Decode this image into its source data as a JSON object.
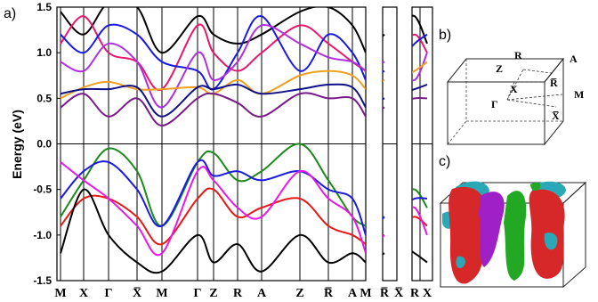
{
  "panels": {
    "a": "a)",
    "b": "b)",
    "c": "c)"
  },
  "chart_data": {
    "type": "line",
    "ylabel": "Energy (eV)",
    "ylim": [
      -1.5,
      1.5
    ],
    "yticks": [
      "1.5",
      "1.0",
      "0.5",
      "0.0",
      "-0.5",
      "-1.0",
      "-1.5"
    ],
    "yticks_values": [
      1.5,
      1.0,
      0.5,
      0.0,
      -0.5,
      -1.0,
      -1.5
    ],
    "fermi_level": 0.0,
    "kpoint_labels": [
      "M",
      "X",
      "Γ",
      "X̅",
      "M",
      "Γ",
      "Z",
      "R",
      "A",
      "Z",
      "R̅",
      "A",
      "M",
      "R̅",
      "X̅",
      "R",
      "X"
    ],
    "series": [
      {
        "color": "#000000",
        "values": [
          1.45,
          1.2,
          1.55,
          1.5,
          1.0,
          1.4,
          1.2,
          1.1,
          1.2,
          1.45,
          1.5,
          1.3,
          1.0,
          1.2,
          1.3,
          1.4,
          1.1
        ]
      },
      {
        "color": "#e8186e",
        "values": [
          1.1,
          1.4,
          1.0,
          0.9,
          0.6,
          1.3,
          1.0,
          0.8,
          1.0,
          1.3,
          1.1,
          0.9,
          0.8,
          0.9,
          1.0,
          1.2,
          1.0
        ]
      },
      {
        "color": "#1a1ae0",
        "values": [
          1.2,
          1.0,
          1.3,
          1.2,
          0.9,
          0.8,
          0.6,
          1.0,
          1.4,
          0.8,
          1.2,
          1.0,
          0.7,
          0.8,
          0.9,
          1.1,
          1.2
        ]
      },
      {
        "color": "#b030e0",
        "values": [
          0.9,
          0.8,
          1.1,
          0.9,
          0.4,
          1.0,
          0.7,
          0.9,
          1.3,
          1.1,
          0.95,
          0.9,
          0.8,
          0.9,
          0.85,
          0.7,
          1.0
        ]
      },
      {
        "color": "#f0a020",
        "values": [
          0.5,
          0.62,
          0.68,
          0.6,
          0.6,
          0.62,
          0.55,
          0.7,
          0.55,
          0.75,
          0.8,
          0.75,
          0.6,
          0.7,
          0.72,
          0.8,
          0.9
        ]
      },
      {
        "color": "#10108a",
        "values": [
          0.55,
          0.6,
          0.6,
          0.62,
          0.3,
          0.62,
          0.6,
          0.65,
          0.55,
          0.6,
          0.65,
          0.62,
          0.4,
          0.5,
          0.55,
          0.6,
          0.65
        ]
      },
      {
        "color": "#7a1a8a",
        "values": [
          0.4,
          0.55,
          0.3,
          0.5,
          0.2,
          0.5,
          0.55,
          0.45,
          0.3,
          0.55,
          0.5,
          0.5,
          0.3,
          0.4,
          0.45,
          0.5,
          0.5
        ]
      },
      {
        "color": "#1a8a1a",
        "values": [
          -0.8,
          -0.4,
          -0.05,
          -0.3,
          -0.9,
          -0.2,
          -0.1,
          -0.4,
          -0.3,
          0.0,
          -0.4,
          -0.8,
          -0.9,
          -0.8,
          -0.6,
          -0.5,
          -0.7
        ]
      },
      {
        "color": "#1a1ae0",
        "values": [
          -0.6,
          -0.3,
          -0.2,
          -0.5,
          -0.9,
          -0.2,
          -0.35,
          -0.3,
          -0.4,
          -0.3,
          -0.5,
          -0.6,
          -1.0,
          -0.8,
          -0.7,
          -0.6,
          -0.6
        ]
      },
      {
        "color": "#e81818",
        "values": [
          -0.9,
          -0.6,
          -0.6,
          -0.8,
          -1.1,
          -0.6,
          -0.5,
          -0.8,
          -0.7,
          -0.6,
          -0.9,
          -1.0,
          -1.1,
          -1.0,
          -0.9,
          -0.8,
          -0.9
        ]
      },
      {
        "color": "#e818e8",
        "values": [
          -0.2,
          -0.4,
          -0.6,
          -0.9,
          -1.2,
          -0.3,
          -0.4,
          -0.7,
          -0.8,
          -0.3,
          -0.6,
          -0.8,
          -1.2,
          -1.0,
          -0.8,
          -0.7,
          -1.0
        ]
      },
      {
        "color": "#000000",
        "values": [
          -1.2,
          -0.5,
          -1.0,
          -1.3,
          -1.4,
          -1.0,
          -1.3,
          -1.1,
          -1.4,
          -1.0,
          -1.3,
          -1.2,
          -1.3,
          -1.2,
          -1.1,
          -1.2,
          -1.3
        ]
      }
    ]
  },
  "bz": {
    "labels": [
      "R",
      "A",
      "Z",
      "R̅",
      "M",
      "Γ",
      "X",
      "X̅"
    ]
  }
}
